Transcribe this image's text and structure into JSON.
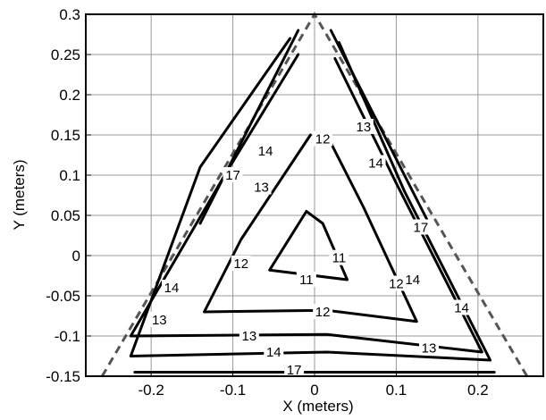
{
  "chart_data": {
    "type": "contour",
    "xlabel": "X (meters)",
    "ylabel": "Y (meters)",
    "xlim": [
      -0.28,
      0.28
    ],
    "ylim": [
      -0.15,
      0.3
    ],
    "grid": true,
    "x_ticks": [
      {
        "value": -0.2,
        "label": "-0.2"
      },
      {
        "value": -0.1,
        "label": "-0.1"
      },
      {
        "value": 0,
        "label": "0"
      },
      {
        "value": 0.1,
        "label": "0.1"
      },
      {
        "value": 0.2,
        "label": "0.2"
      }
    ],
    "y_ticks": [
      {
        "value": -0.15,
        "label": "-0.15"
      },
      {
        "value": -0.1,
        "label": "-0.1"
      },
      {
        "value": -0.05,
        "label": "-0.05"
      },
      {
        "value": 0,
        "label": "0"
      },
      {
        "value": 0.05,
        "label": "0.05"
      },
      {
        "value": 0.1,
        "label": "0.1"
      },
      {
        "value": 0.15,
        "label": "0.15"
      },
      {
        "value": 0.2,
        "label": "0.2"
      },
      {
        "value": 0.25,
        "label": "0.25"
      },
      {
        "value": 0.3,
        "label": "0.3"
      }
    ],
    "boundary": [
      [
        -0.26,
        -0.15
      ],
      [
        0,
        0.3
      ],
      [
        0.26,
        -0.15
      ]
    ],
    "contours": [
      {
        "level": 11,
        "points": [
          [
            -0.01,
            0.055
          ],
          [
            -0.055,
            -0.018
          ],
          [
            0.04,
            -0.03
          ],
          [
            0.01,
            0.04
          ],
          [
            -0.01,
            0.055
          ]
        ]
      },
      {
        "level": 12,
        "points": [
          [
            -0.005,
            0.15
          ],
          [
            -0.09,
            0.02
          ],
          [
            -0.135,
            -0.07
          ],
          [
            0.015,
            -0.068
          ],
          [
            0.125,
            -0.082
          ],
          [
            0.06,
            0.06
          ],
          [
            0.015,
            0.15
          ]
        ]
      },
      {
        "level": 13,
        "points": [
          [
            -0.02,
            0.25
          ],
          [
            -0.11,
            0.1
          ],
          [
            -0.225,
            -0.1
          ],
          [
            0.015,
            -0.098
          ],
          [
            0.205,
            -0.12
          ],
          [
            0.1,
            0.09
          ],
          [
            0.025,
            0.245
          ]
        ]
      },
      {
        "level": 14,
        "points": [
          [
            -0.03,
            0.27
          ],
          [
            -0.14,
            0.11
          ],
          [
            -0.225,
            -0.125
          ],
          [
            0.015,
            -0.12
          ],
          [
            0.215,
            -0.13
          ],
          [
            0.11,
            0.08
          ],
          [
            0.03,
            0.265
          ]
        ]
      },
      {
        "level": 17,
        "points": [
          [
            -0.02,
            0.28
          ],
          [
            -0.14,
            0.04
          ]
        ]
      },
      {
        "level": 17,
        "points": [
          [
            0.02,
            0.28
          ],
          [
            0.14,
            0.04
          ]
        ]
      },
      {
        "level": 17,
        "points": [
          [
            -0.22,
            -0.145
          ],
          [
            0.22,
            -0.145
          ]
        ]
      }
    ],
    "contour_labels": [
      {
        "text": "11",
        "x": 0.03,
        "y": -0.003
      },
      {
        "text": "11",
        "x": -0.01,
        "y": -0.03
      },
      {
        "text": "12",
        "x": 0.01,
        "y": 0.145
      },
      {
        "text": "12",
        "x": -0.09,
        "y": -0.01
      },
      {
        "text": "12",
        "x": 0.1,
        "y": -0.035
      },
      {
        "text": "12",
        "x": 0.01,
        "y": -0.07
      },
      {
        "text": "13",
        "x": 0.06,
        "y": 0.16
      },
      {
        "text": "13",
        "x": -0.065,
        "y": 0.085
      },
      {
        "text": "13",
        "x": -0.19,
        "y": -0.08
      },
      {
        "text": "13",
        "x": -0.08,
        "y": -0.1
      },
      {
        "text": "13",
        "x": 0.14,
        "y": -0.115
      },
      {
        "text": "14",
        "x": -0.06,
        "y": 0.13
      },
      {
        "text": "14",
        "x": 0.075,
        "y": 0.115
      },
      {
        "text": "14",
        "x": -0.175,
        "y": -0.04
      },
      {
        "text": "14",
        "x": 0.12,
        "y": -0.03
      },
      {
        "text": "14",
        "x": -0.05,
        "y": -0.12
      },
      {
        "text": "14",
        "x": 0.18,
        "y": -0.065
      },
      {
        "text": "17",
        "x": -0.1,
        "y": 0.1
      },
      {
        "text": "17",
        "x": 0.13,
        "y": 0.035
      },
      {
        "text": "17",
        "x": -0.025,
        "y": -0.142
      }
    ]
  }
}
